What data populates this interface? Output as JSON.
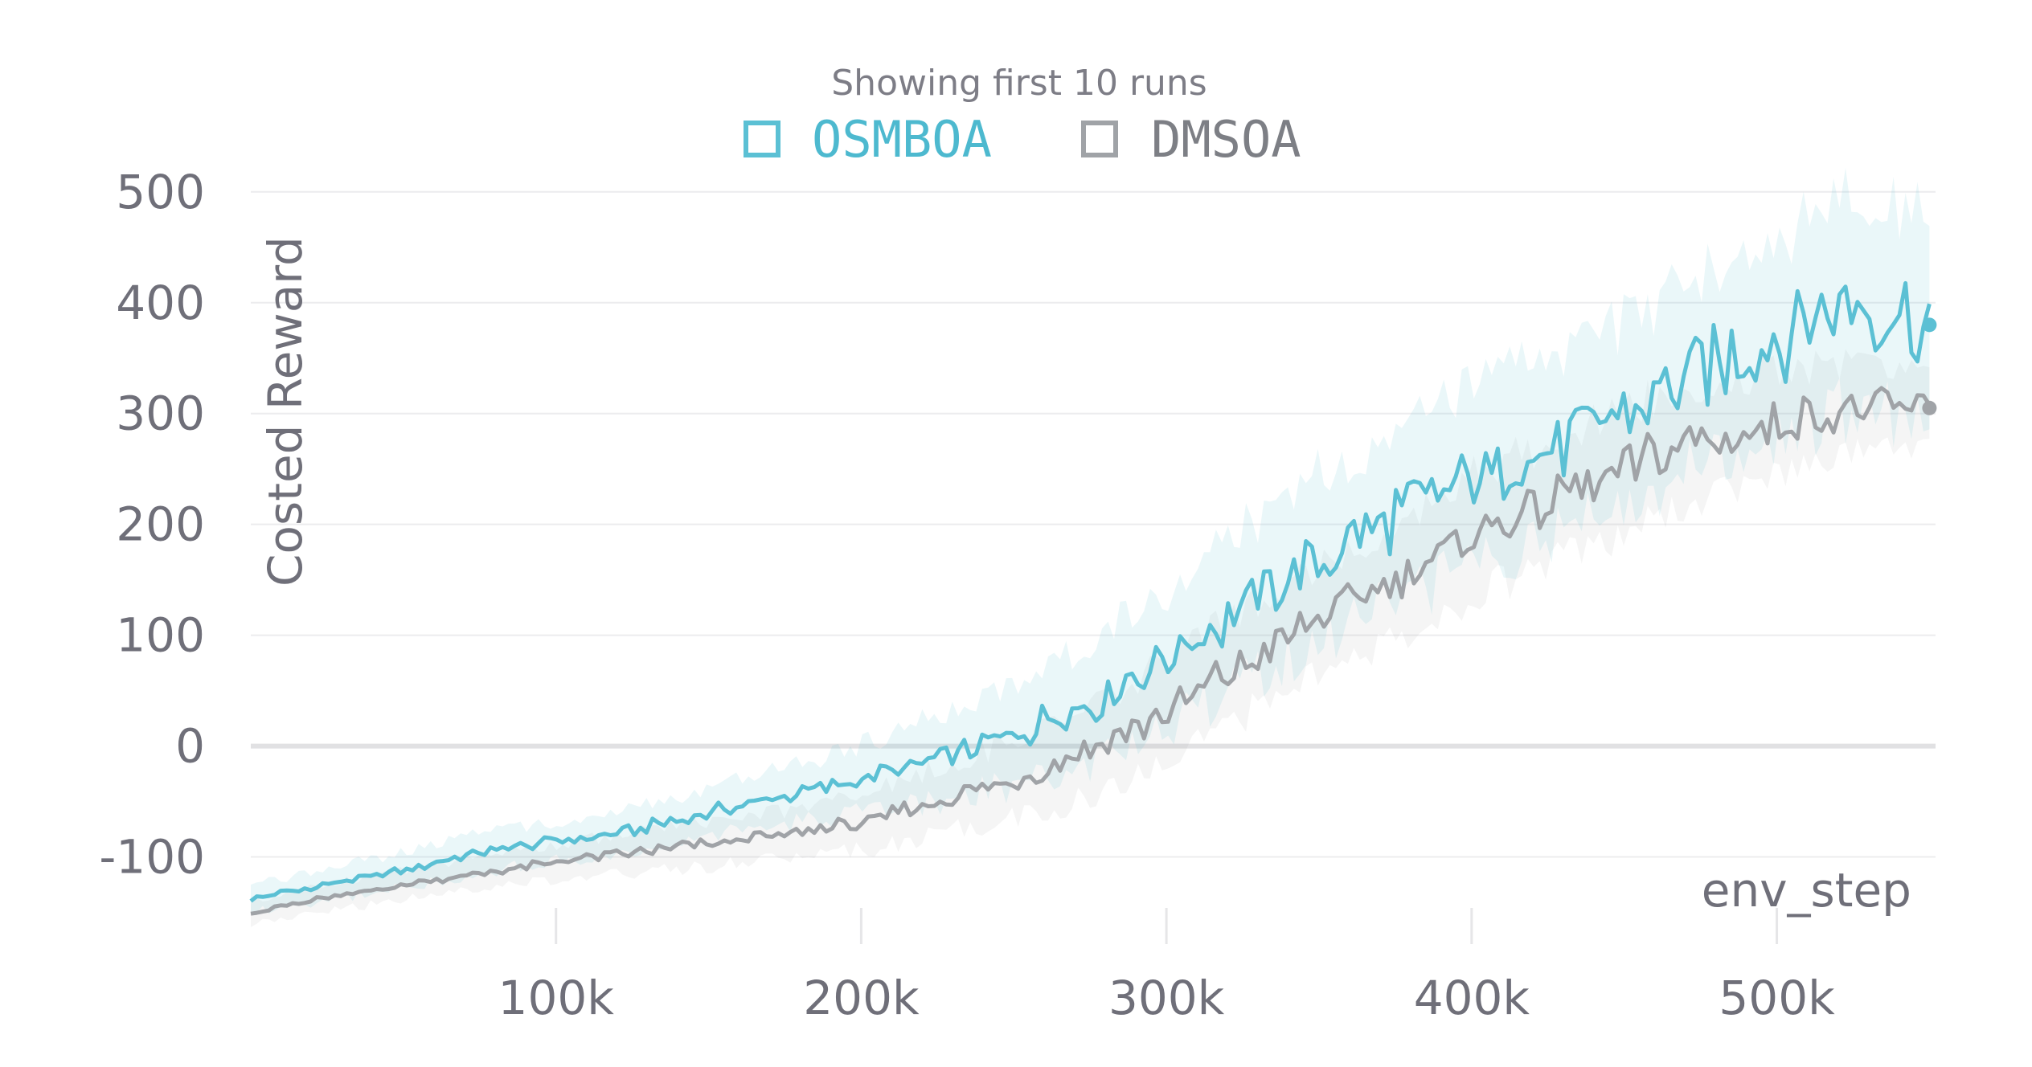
{
  "chart_data": {
    "type": "line",
    "legend_subtitle": "Showing first 10 runs",
    "xlabel": "env_step",
    "ylabel": "Costed Reward",
    "xlim": [
      0,
      552000
    ],
    "ylim": [
      -175,
      510
    ],
    "x_ticks": [
      {
        "value": 100000,
        "label": "100k"
      },
      {
        "value": 200000,
        "label": "200k"
      },
      {
        "value": 300000,
        "label": "300k"
      },
      {
        "value": 400000,
        "label": "400k"
      },
      {
        "value": 500000,
        "label": "500k"
      }
    ],
    "y_ticks": [
      {
        "value": 500,
        "label": "500"
      },
      {
        "value": 400,
        "label": "400"
      },
      {
        "value": 300,
        "label": "300"
      },
      {
        "value": 200,
        "label": "200"
      },
      {
        "value": 100,
        "label": "100"
      },
      {
        "value": 0,
        "label": "0"
      },
      {
        "value": -100,
        "label": "-100"
      }
    ],
    "x": [
      0,
      25000,
      50000,
      75000,
      100000,
      125000,
      150000,
      175000,
      200000,
      225000,
      250000,
      275000,
      300000,
      325000,
      350000,
      375000,
      400000,
      425000,
      450000,
      475000,
      500000,
      525000,
      550000
    ],
    "series": [
      {
        "name": "OSMBOA",
        "color": "#5bc0d4",
        "values": [
          -138,
          -125,
          -112,
          -96,
          -86,
          -76,
          -60,
          -45,
          -30,
          -12,
          10,
          40,
          80,
          125,
          170,
          210,
          240,
          270,
          300,
          340,
          370,
          400,
          380
        ],
        "band": [
          12,
          14,
          16,
          18,
          18,
          20,
          22,
          25,
          30,
          38,
          45,
          55,
          62,
          70,
          75,
          78,
          80,
          80,
          82,
          85,
          88,
          95,
          95
        ]
      },
      {
        "name": "DMSOA",
        "color": "#a0a3a7",
        "values": [
          -150,
          -137,
          -125,
          -115,
          -105,
          -96,
          -88,
          -80,
          -70,
          -50,
          -30,
          -5,
          30,
          75,
          115,
          150,
          190,
          220,
          250,
          275,
          290,
          305,
          305
        ],
        "band": [
          10,
          12,
          14,
          15,
          16,
          18,
          20,
          22,
          25,
          30,
          35,
          40,
          45,
          48,
          50,
          52,
          55,
          55,
          55,
          52,
          48,
          40,
          35
        ]
      }
    ]
  }
}
